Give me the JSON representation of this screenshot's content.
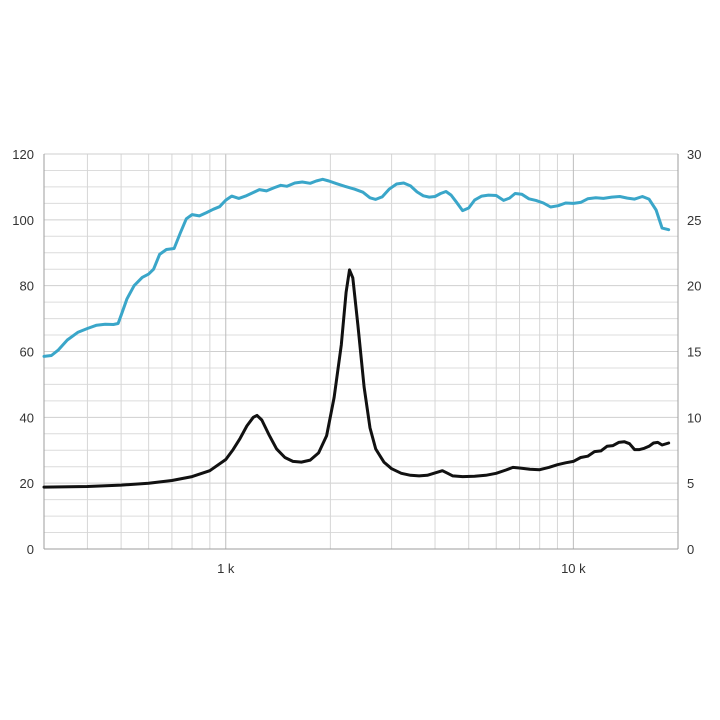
{
  "chart_data": {
    "type": "line",
    "xscale": "log",
    "xlim": [
      300,
      20000
    ],
    "x_tick_labels": [
      {
        "value": 1000,
        "label": "1 k"
      },
      {
        "value": 10000,
        "label": "10 k"
      }
    ],
    "y_left": {
      "ylim": [
        0,
        120
      ],
      "ticks": [
        "0",
        "20",
        "40",
        "60",
        "80",
        "100",
        "120"
      ],
      "tick_values": [
        0,
        20,
        40,
        60,
        80,
        100,
        120
      ]
    },
    "y_right": {
      "ylim": [
        0,
        30
      ],
      "ticks": [
        "0",
        "5",
        "10",
        "15",
        "20",
        "25",
        "30"
      ],
      "tick_values": [
        0,
        5,
        10,
        15,
        20,
        25,
        30
      ]
    },
    "grid": true,
    "series": [
      {
        "axis": "left",
        "color": "#3aa6c9",
        "points": [
          [
            300,
            58.5
          ],
          [
            315,
            58.8
          ],
          [
            330,
            60.5
          ],
          [
            350,
            63.5
          ],
          [
            375,
            65.8
          ],
          [
            400,
            67
          ],
          [
            425,
            68
          ],
          [
            450,
            68.3
          ],
          [
            475,
            68.2
          ],
          [
            490,
            68.5
          ],
          [
            500,
            71
          ],
          [
            520,
            76
          ],
          [
            545,
            80
          ],
          [
            575,
            82.5
          ],
          [
            600,
            83.5
          ],
          [
            620,
            85
          ],
          [
            645,
            89.5
          ],
          [
            675,
            91
          ],
          [
            710,
            91.3
          ],
          [
            740,
            96
          ],
          [
            770,
            100.3
          ],
          [
            800,
            101.6
          ],
          [
            840,
            101.2
          ],
          [
            880,
            102.2
          ],
          [
            920,
            103.2
          ],
          [
            960,
            104
          ],
          [
            1000,
            106
          ],
          [
            1040,
            107.2
          ],
          [
            1090,
            106.5
          ],
          [
            1140,
            107.2
          ],
          [
            1200,
            108.3
          ],
          [
            1250,
            109.2
          ],
          [
            1310,
            108.8
          ],
          [
            1380,
            109.8
          ],
          [
            1440,
            110.5
          ],
          [
            1500,
            110.2
          ],
          [
            1580,
            111.2
          ],
          [
            1660,
            111.5
          ],
          [
            1750,
            111.1
          ],
          [
            1820,
            111.8
          ],
          [
            1900,
            112.3
          ],
          [
            1980,
            111.8
          ],
          [
            2080,
            111
          ],
          [
            2200,
            110.2
          ],
          [
            2350,
            109.3
          ],
          [
            2480,
            108.4
          ],
          [
            2600,
            106.7
          ],
          [
            2700,
            106.2
          ],
          [
            2820,
            107
          ],
          [
            2950,
            109.3
          ],
          [
            3100,
            110.9
          ],
          [
            3250,
            111.2
          ],
          [
            3400,
            110.3
          ],
          [
            3550,
            108.5
          ],
          [
            3700,
            107.3
          ],
          [
            3850,
            106.9
          ],
          [
            4000,
            107.1
          ],
          [
            4150,
            108
          ],
          [
            4300,
            108.6
          ],
          [
            4450,
            107.5
          ],
          [
            4600,
            105.5
          ],
          [
            4800,
            102.8
          ],
          [
            5000,
            103.6
          ],
          [
            5200,
            106
          ],
          [
            5450,
            107.2
          ],
          [
            5700,
            107.5
          ],
          [
            6000,
            107.4
          ],
          [
            6300,
            105.9
          ],
          [
            6550,
            106.6
          ],
          [
            6800,
            108
          ],
          [
            7100,
            107.8
          ],
          [
            7450,
            106.4
          ],
          [
            7800,
            105.9
          ],
          [
            8200,
            105.1
          ],
          [
            8600,
            103.9
          ],
          [
            9050,
            104.3
          ],
          [
            9500,
            105.1
          ],
          [
            10000,
            105
          ],
          [
            10500,
            105.3
          ],
          [
            11000,
            106.4
          ],
          [
            11600,
            106.7
          ],
          [
            12200,
            106.5
          ],
          [
            12900,
            106.9
          ],
          [
            13600,
            107.1
          ],
          [
            14300,
            106.6
          ],
          [
            15000,
            106.3
          ],
          [
            15800,
            107.1
          ],
          [
            16500,
            106.3
          ],
          [
            17300,
            103
          ],
          [
            18000,
            97.5
          ],
          [
            18800,
            97
          ]
        ]
      },
      {
        "axis": "right",
        "color": "#111111",
        "points": [
          [
            300,
            4.7
          ],
          [
            400,
            4.75
          ],
          [
            500,
            4.85
          ],
          [
            600,
            5.0
          ],
          [
            700,
            5.2
          ],
          [
            800,
            5.5
          ],
          [
            900,
            5.95
          ],
          [
            1000,
            6.8
          ],
          [
            1050,
            7.55
          ],
          [
            1100,
            8.4
          ],
          [
            1150,
            9.35
          ],
          [
            1200,
            10.0
          ],
          [
            1230,
            10.15
          ],
          [
            1270,
            9.8
          ],
          [
            1330,
            8.7
          ],
          [
            1400,
            7.6
          ],
          [
            1480,
            6.95
          ],
          [
            1560,
            6.65
          ],
          [
            1650,
            6.6
          ],
          [
            1750,
            6.75
          ],
          [
            1850,
            7.3
          ],
          [
            1950,
            8.6
          ],
          [
            2050,
            11.5
          ],
          [
            2150,
            15.5
          ],
          [
            2220,
            19.5
          ],
          [
            2270,
            21.2
          ],
          [
            2320,
            20.6
          ],
          [
            2400,
            17.0
          ],
          [
            2500,
            12.3
          ],
          [
            2600,
            9.2
          ],
          [
            2700,
            7.6
          ],
          [
            2850,
            6.6
          ],
          [
            3000,
            6.1
          ],
          [
            3200,
            5.75
          ],
          [
            3400,
            5.6
          ],
          [
            3600,
            5.55
          ],
          [
            3800,
            5.6
          ],
          [
            4000,
            5.78
          ],
          [
            4200,
            5.95
          ],
          [
            4350,
            5.75
          ],
          [
            4500,
            5.55
          ],
          [
            4800,
            5.5
          ],
          [
            5200,
            5.52
          ],
          [
            5600,
            5.6
          ],
          [
            6000,
            5.75
          ],
          [
            6400,
            6.0
          ],
          [
            6700,
            6.2
          ],
          [
            7000,
            6.15
          ],
          [
            7500,
            6.05
          ],
          [
            8000,
            6.02
          ],
          [
            8500,
            6.2
          ],
          [
            9000,
            6.4
          ],
          [
            9500,
            6.55
          ],
          [
            10000,
            6.65
          ],
          [
            10500,
            6.95
          ],
          [
            11000,
            7.05
          ],
          [
            11500,
            7.4
          ],
          [
            12000,
            7.45
          ],
          [
            12500,
            7.8
          ],
          [
            13000,
            7.85
          ],
          [
            13500,
            8.1
          ],
          [
            14000,
            8.15
          ],
          [
            14500,
            8.0
          ],
          [
            15000,
            7.55
          ],
          [
            15500,
            7.55
          ],
          [
            16000,
            7.65
          ],
          [
            16500,
            7.8
          ],
          [
            17000,
            8.05
          ],
          [
            17500,
            8.1
          ],
          [
            18000,
            7.9
          ],
          [
            18800,
            8.05
          ]
        ]
      }
    ]
  }
}
